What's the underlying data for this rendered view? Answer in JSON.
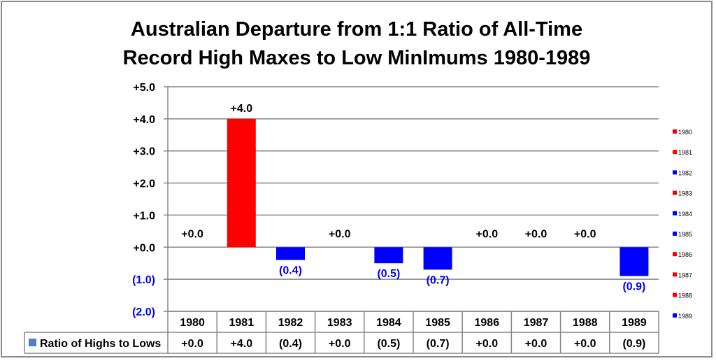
{
  "chart_data": {
    "type": "bar",
    "title": "Australian Departure from 1:1 Ratio of All-Time Record High Maxes to  Low MinImums 1980-1989",
    "title_lines": [
      "Australian Departure from 1:1 Ratio of All-Time",
      "Record High Maxes to  Low MinImums 1980-1989"
    ],
    "categories": [
      "1980",
      "1981",
      "1982",
      "1983",
      "1984",
      "1985",
      "1986",
      "1987",
      "1988",
      "1989"
    ],
    "values": [
      0.0,
      4.0,
      -0.4,
      0.0,
      -0.5,
      -0.7,
      0.0,
      0.0,
      0.0,
      -0.9
    ],
    "data_labels": [
      "+0.0",
      "+4.0",
      "(0.4)",
      "+0.0",
      "(0.5)",
      "(0.7)",
      "+0.0",
      "+0.0",
      "+0.0",
      "(0.9)"
    ],
    "ylim": [
      -2,
      5
    ],
    "yticks": [
      5,
      4,
      3,
      2,
      1,
      0,
      -1,
      -2
    ],
    "ytick_labels": [
      "+5.0",
      "+4.0",
      "+3.0",
      "+2.0",
      "+1.0",
      "+0.0",
      "(1.0)",
      "(2.0)"
    ],
    "series_name": "Ratio of Highs to Lows",
    "legend_position": "right",
    "colors": {
      "positive": "#ff0000",
      "negative": "#0000ff",
      "zero": "#ff0000",
      "series_legend": "#4f81bd",
      "neg_text": "#0000ff",
      "grid": "#868686"
    },
    "grid": true
  }
}
